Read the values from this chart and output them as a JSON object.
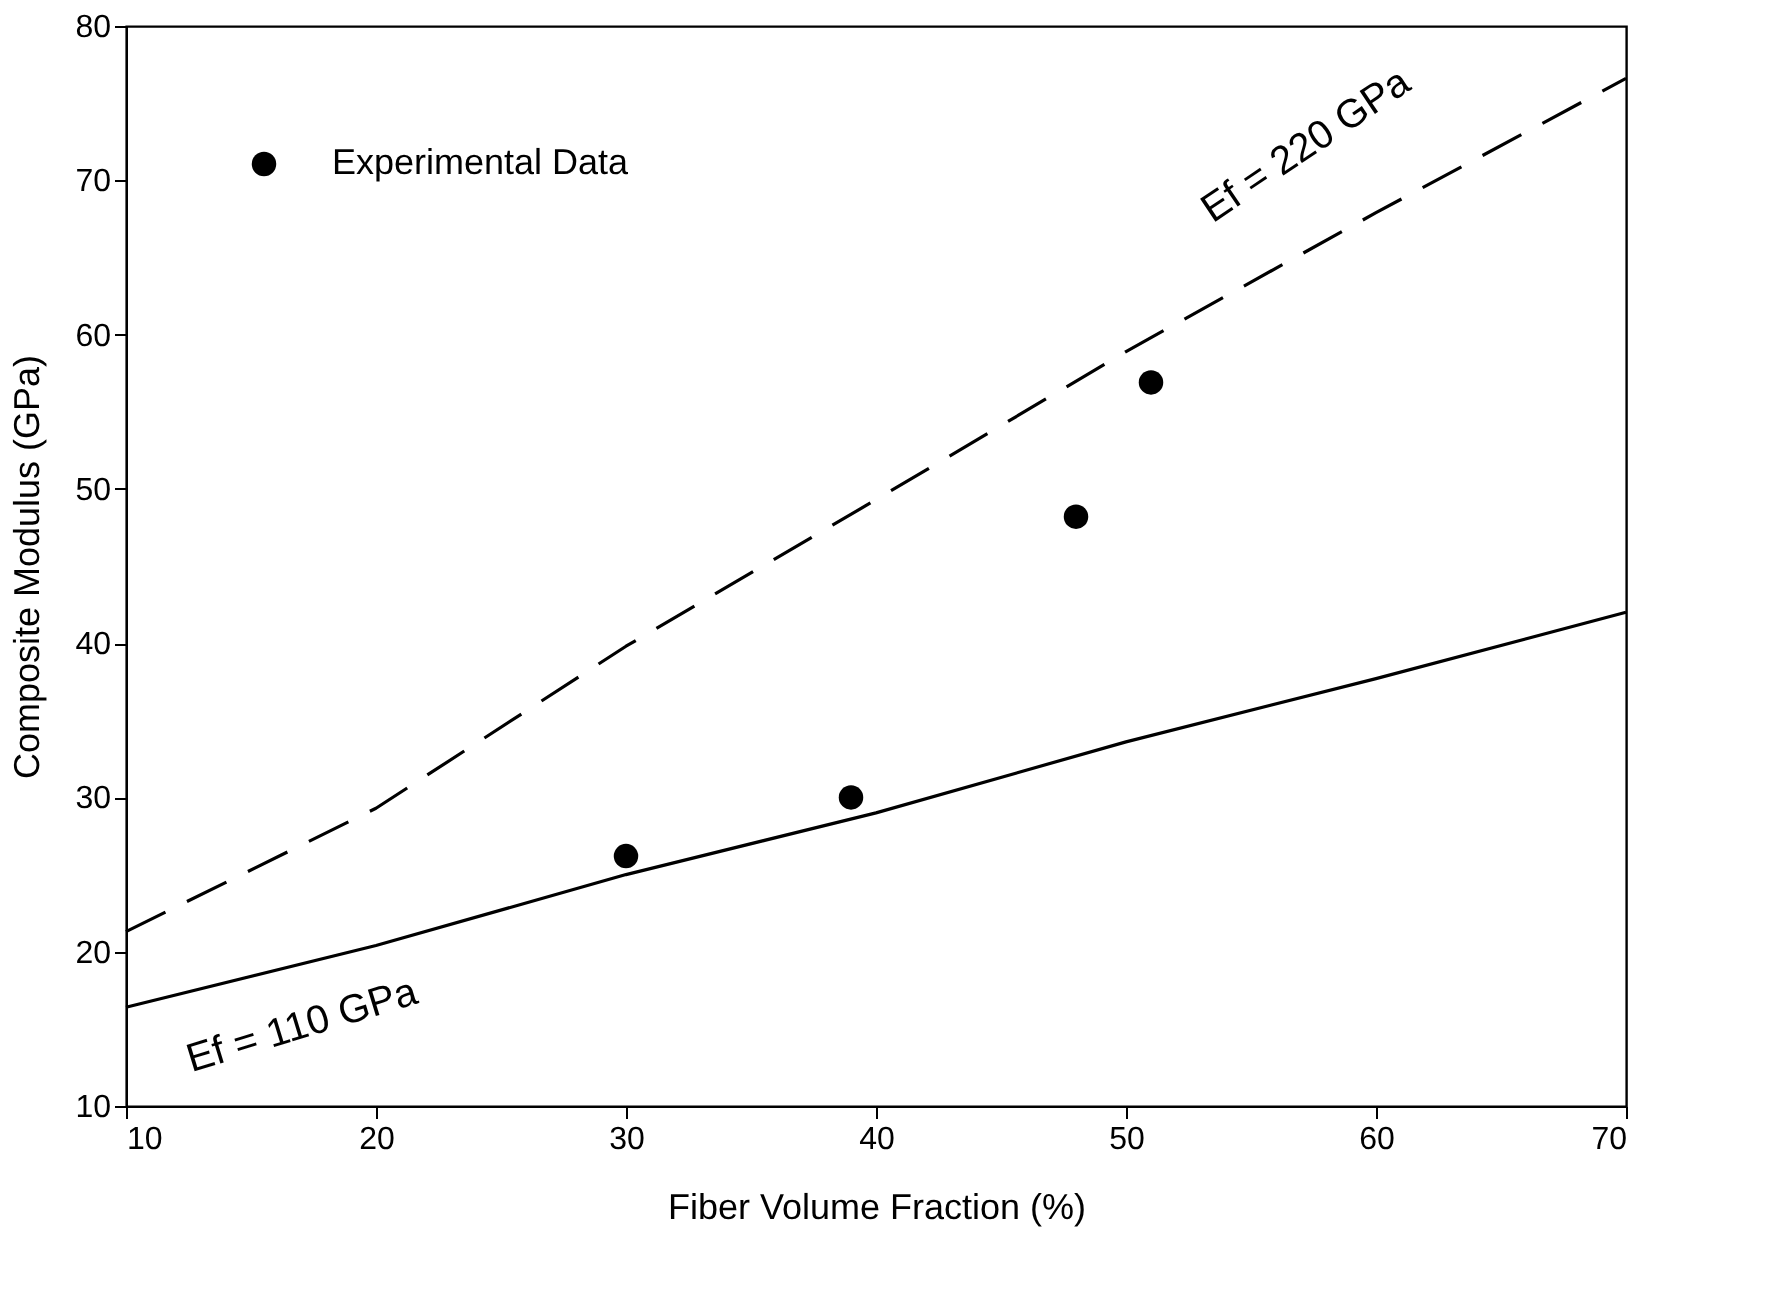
{
  "chart_data": {
    "type": "scatter",
    "xlabel": "Fiber Volume Fraction (%)",
    "ylabel": "Composite Modulus (GPa)",
    "xlim": [
      10,
      70
    ],
    "ylim": [
      10,
      80
    ],
    "xticks": [
      10,
      20,
      30,
      40,
      50,
      60,
      70
    ],
    "yticks": [
      10,
      20,
      30,
      40,
      50,
      60,
      70,
      80
    ],
    "grid": false,
    "legend": "top left",
    "series": [
      {
        "name": "Experimental Data",
        "color": "#000000",
        "marker": "circle",
        "x": [
          30,
          39,
          48,
          51
        ],
        "values": [
          26.2,
          30.0,
          48.2,
          56.9
        ]
      },
      {
        "type": "line",
        "color": "#000000",
        "line_style": "dashed",
        "marker": "none",
        "x": [
          10,
          20,
          30,
          40,
          50,
          60,
          70
        ],
        "values": [
          21.3,
          29.3,
          39.8,
          49.3,
          58.9,
          67.9,
          76.6
        ]
      },
      {
        "type": "line",
        "color": "#000000",
        "line_style": "solid",
        "marker": "none",
        "x": [
          10,
          20,
          30,
          40,
          50,
          60,
          70
        ],
        "values": [
          16.4,
          20.4,
          25.0,
          29.0,
          33.6,
          37.7,
          42.0
        ]
      }
    ],
    "annotations": [
      "Ef = 220 GPa",
      "Ef = 110 GPa"
    ]
  }
}
